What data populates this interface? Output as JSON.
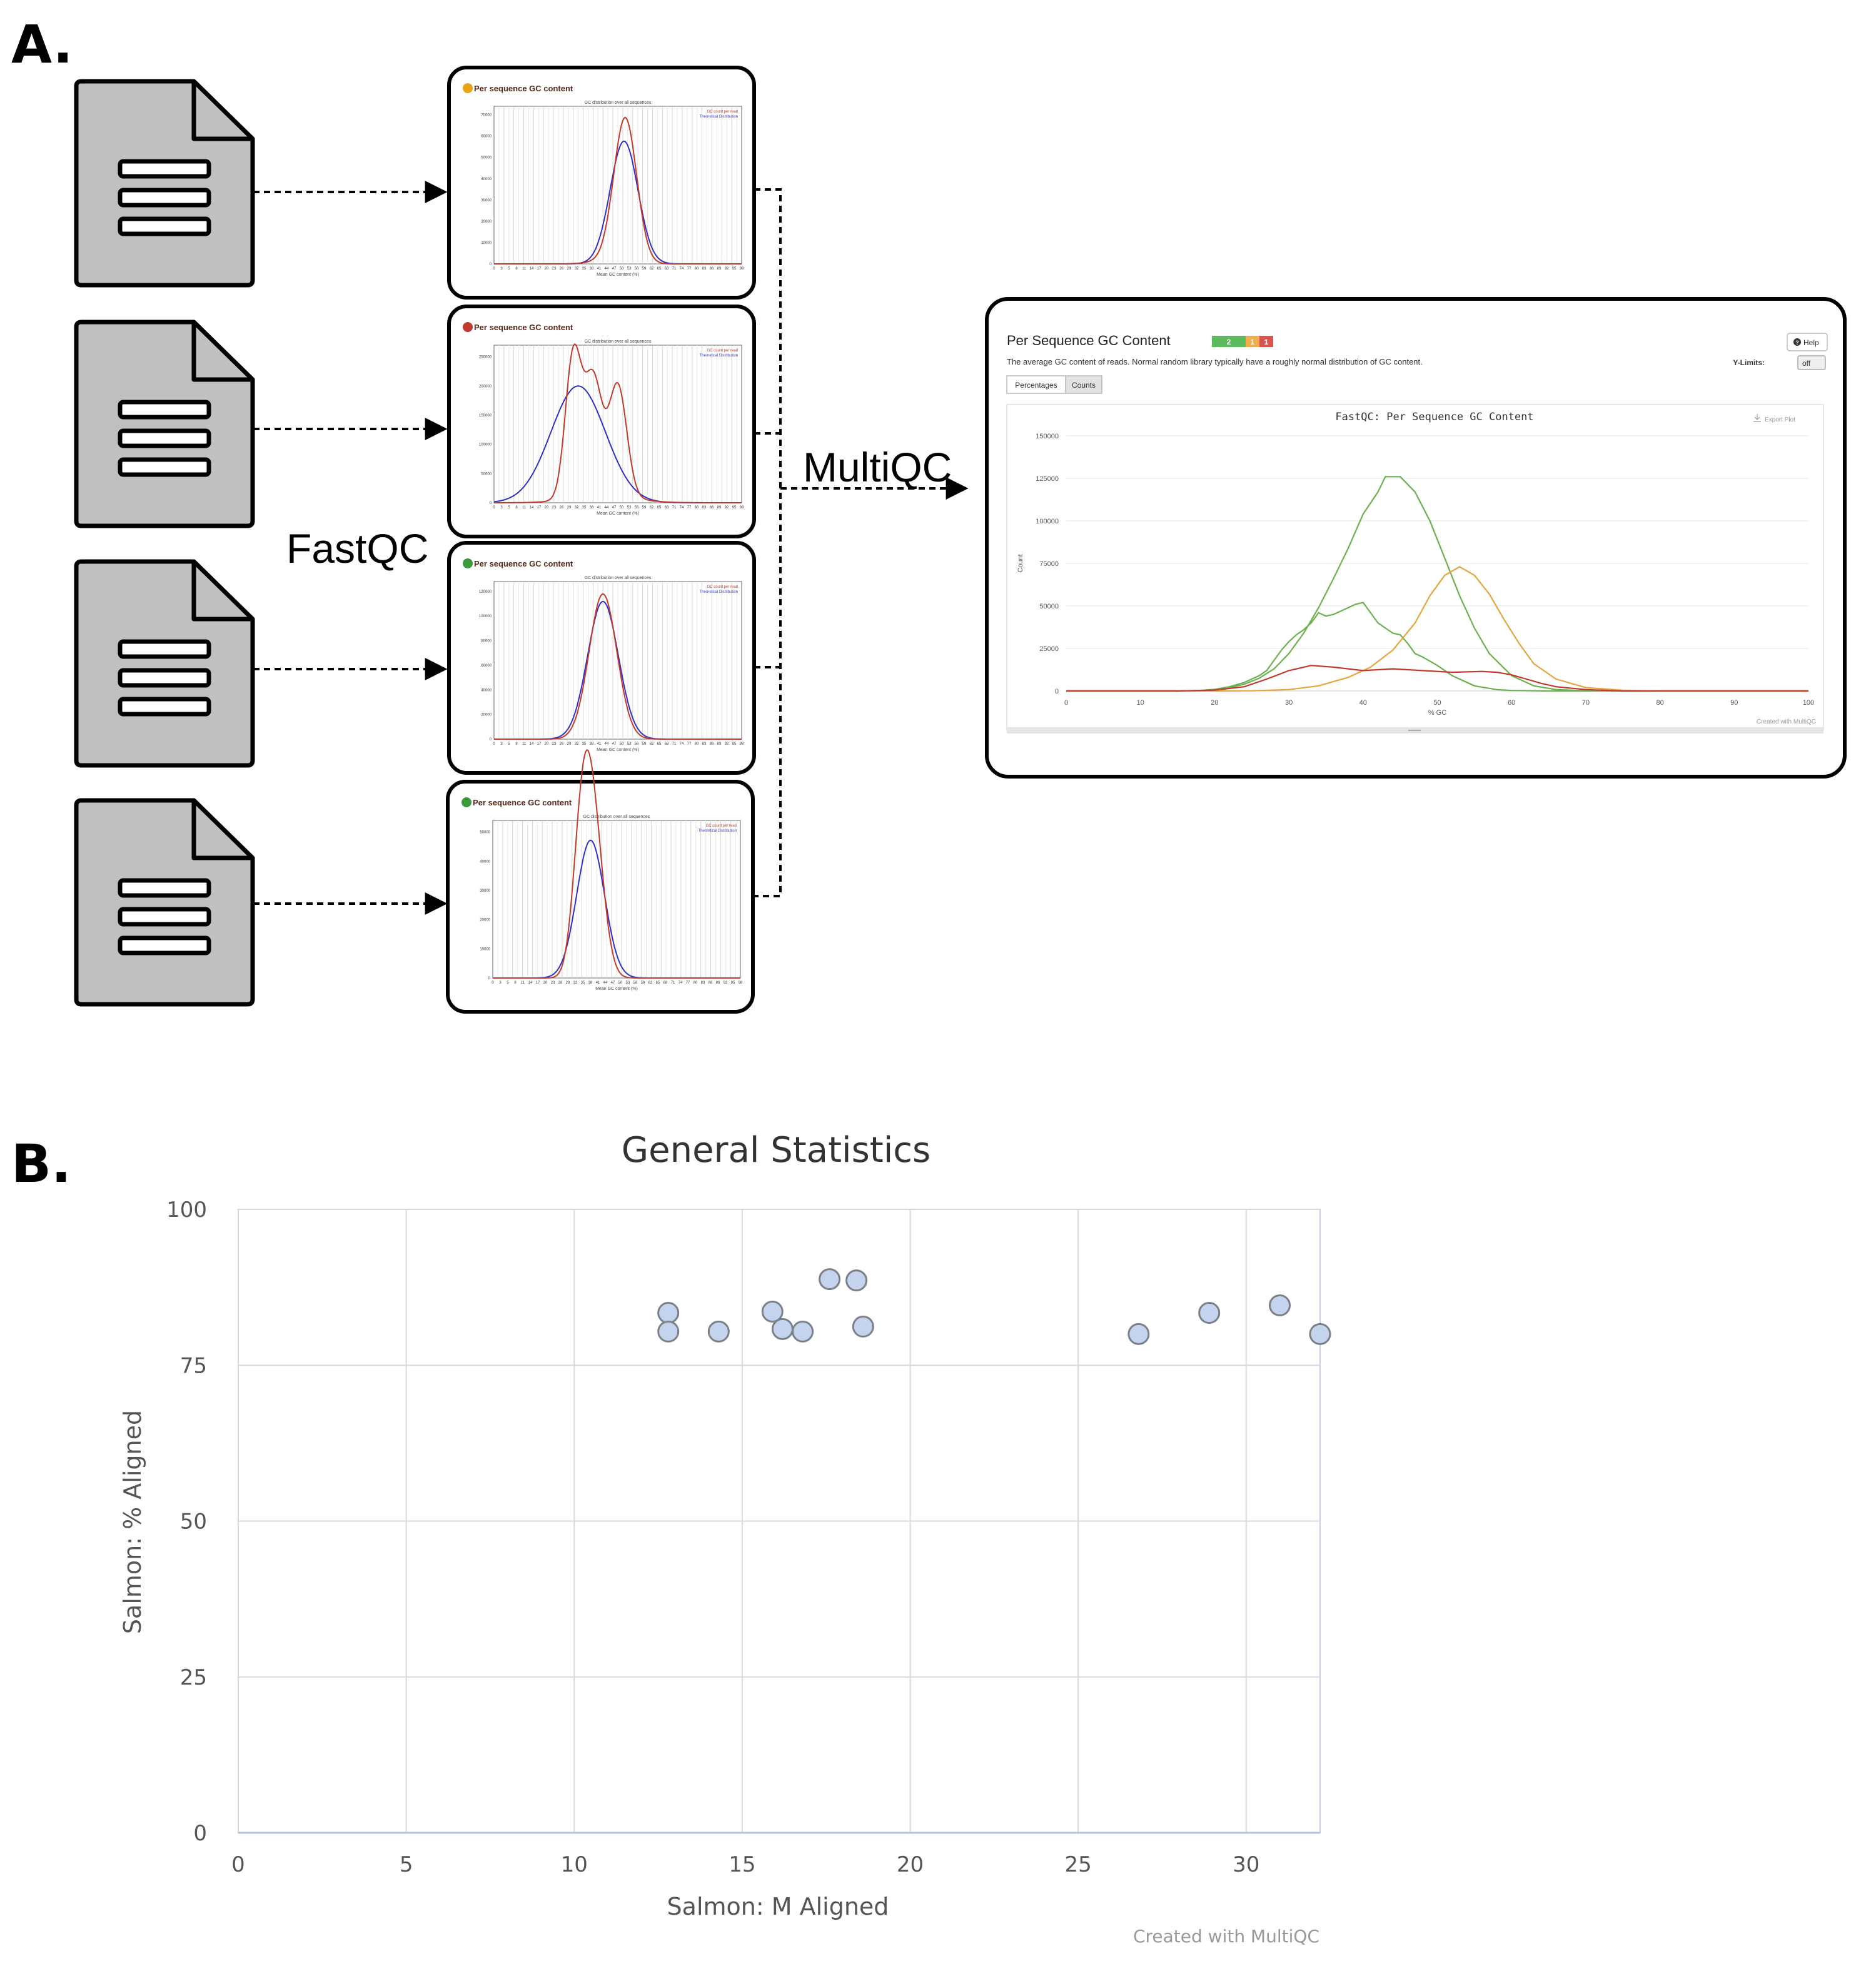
{
  "panel_a": {
    "label": "A.",
    "fastqc_label": "FastQC",
    "multiqc_label": "MultiQC",
    "fastqc_reports": [
      {
        "status": "warn",
        "status_color": "#e8a317",
        "title": "Per sequence GC content",
        "subtitle": "GC distribution over all sequences",
        "xlabel": "Mean GC content (%)",
        "legend": [
          "GC count per read",
          "Theoretical Distribution"
        ],
        "yticks": [
          "0",
          "10000",
          "20000",
          "30000",
          "40000",
          "50000",
          "60000",
          "70000"
        ]
      },
      {
        "status": "fail",
        "status_color": "#c0392b",
        "title": "Per sequence GC content",
        "subtitle": "GC distribution over all sequences",
        "xlabel": "Mean GC content (%)",
        "legend": [
          "GC count per read",
          "Theoretical Distribution"
        ],
        "yticks": [
          "0",
          "50000",
          "100000",
          "150000",
          "200000",
          "250000"
        ]
      },
      {
        "status": "pass",
        "status_color": "#3c9a3c",
        "title": "Per sequence GC content",
        "subtitle": "GC distribution over all sequences",
        "xlabel": "Mean GC content (%)",
        "legend": [
          "GC count per read",
          "Theoretical Distribution"
        ],
        "yticks": [
          "0",
          "20000",
          "40000",
          "60000",
          "80000",
          "100000",
          "120000"
        ]
      },
      {
        "status": "pass",
        "status_color": "#3c9a3c",
        "title": "Per sequence GC content",
        "subtitle": "GC distribution over all sequences",
        "xlabel": "Mean GC content (%)",
        "legend": [
          "GC count per read",
          "Theoretical Distribution"
        ],
        "yticks": [
          "0",
          "10000",
          "20000",
          "30000",
          "40000",
          "50000"
        ]
      }
    ],
    "multiqc_report": {
      "title": "Per Sequence GC Content",
      "badges": [
        {
          "text": "2",
          "color": "#5cb85c"
        },
        {
          "text": "1",
          "color": "#f0ad4e"
        },
        {
          "text": "1",
          "color": "#d9534f"
        }
      ],
      "help_label": "Help",
      "description": "The average GC content of reads. Normal random library typically have a roughly normal distribution of GC content.",
      "ylimits_label": "Y-Limits:",
      "ylimits_value": "off",
      "tabs": [
        "Percentages",
        "Counts"
      ],
      "active_tab": "Counts",
      "export_label": "Export Plot",
      "credit": "Created with MultiQC",
      "chart_data": {
        "type": "line",
        "title": "FastQC: Per Sequence GC Content",
        "xlabel": "% GC",
        "ylabel": "Count",
        "xlim": [
          0,
          100
        ],
        "ylim": [
          0,
          150000
        ],
        "xticks": [
          0,
          10,
          20,
          30,
          40,
          50,
          60,
          70,
          80,
          90,
          100
        ],
        "yticks": [
          0,
          25000,
          50000,
          75000,
          100000,
          125000,
          150000
        ],
        "series": [
          {
            "color": "#6ab04c",
            "x": [
              0,
              10,
              15,
              18,
              20,
              22,
              24,
              26,
              28,
              30,
              32,
              34,
              36,
              38,
              40,
              42,
              43,
              45,
              47,
              49,
              51,
              53,
              55,
              57,
              60,
              63,
              66,
              70,
              75,
              80,
              90,
              100
            ],
            "y": [
              0,
              0,
              0,
              200,
              800,
              2000,
              4000,
              7500,
              13000,
              22000,
              34000,
              49000,
              66000,
              84000,
              104000,
              117000,
              126000,
              126000,
              117000,
              100000,
              78000,
              56000,
              37000,
              22000,
              9000,
              3000,
              800,
              200,
              0,
              0,
              0,
              0
            ]
          },
          {
            "color": "#6ab04c",
            "x": [
              0,
              10,
              15,
              18,
              20,
              22,
              24,
              26,
              27,
              28,
              29,
              30,
              31,
              32,
              33,
              34,
              35,
              36,
              37,
              38,
              39,
              40,
              41,
              42,
              43,
              44,
              45,
              46,
              47,
              48,
              50,
              52,
              55,
              58,
              60,
              65,
              70,
              80,
              100
            ],
            "y": [
              0,
              0,
              0,
              300,
              1000,
              2500,
              5000,
              9000,
              12000,
              18000,
              24000,
              29000,
              33000,
              36000,
              40000,
              46000,
              44000,
              45000,
              47000,
              49000,
              51000,
              52000,
              46000,
              40000,
              37000,
              34000,
              33000,
              28000,
              22000,
              20000,
              15000,
              9000,
              3000,
              800,
              300,
              0,
              0,
              0,
              0
            ]
          },
          {
            "color": "#e8a33d",
            "x": [
              0,
              10,
              20,
              25,
              30,
              34,
              38,
              41,
              44,
              47,
              49,
              51,
              53,
              55,
              57,
              59,
              61,
              63,
              66,
              70,
              75,
              80,
              90,
              100
            ],
            "y": [
              0,
              0,
              0,
              100,
              800,
              3000,
              8000,
              14000,
              24000,
              40000,
              56000,
              68000,
              73000,
              68000,
              57000,
              42000,
              28000,
              16000,
              7000,
              2000,
              400,
              0,
              0,
              0
            ]
          },
          {
            "color": "#c0392b",
            "x": [
              0,
              10,
              15,
              20,
              24,
              27,
              30,
              33,
              36,
              40,
              44,
              48,
              52,
              56,
              58,
              60,
              62,
              64,
              66,
              70,
              75,
              80,
              100
            ],
            "y": [
              0,
              0,
              0,
              500,
              2500,
              7000,
              12000,
              15000,
              14000,
              12000,
              13000,
              12000,
              11000,
              11500,
              11000,
              9500,
              7000,
              4500,
              2500,
              800,
              0,
              0,
              0
            ]
          }
        ]
      }
    }
  },
  "panel_b": {
    "label": "B.",
    "credit": "Created with MultiQC",
    "chart_data": {
      "type": "scatter",
      "title": "General Statistics",
      "xlabel": "Salmon: M Aligned",
      "ylabel": "Salmon: % Aligned",
      "xlim": [
        0,
        32.2
      ],
      "ylim": [
        0,
        100
      ],
      "xticks": [
        0,
        5,
        10,
        15,
        20,
        25,
        30
      ],
      "yticks": [
        0,
        25,
        50,
        75,
        100
      ],
      "grid": true,
      "point_color": "#c5d4ee",
      "point_stroke": "#7a7f88",
      "points": [
        {
          "x": 12.8,
          "y": 83.4
        },
        {
          "x": 12.8,
          "y": 80.4
        },
        {
          "x": 14.3,
          "y": 80.4
        },
        {
          "x": 15.9,
          "y": 83.6
        },
        {
          "x": 16.2,
          "y": 80.8
        },
        {
          "x": 16.8,
          "y": 80.4
        },
        {
          "x": 17.6,
          "y": 88.8
        },
        {
          "x": 18.4,
          "y": 88.6
        },
        {
          "x": 18.6,
          "y": 81.2
        },
        {
          "x": 26.8,
          "y": 80.0
        },
        {
          "x": 28.9,
          "y": 83.4
        },
        {
          "x": 31.0,
          "y": 84.6
        },
        {
          "x": 32.2,
          "y": 80.0
        }
      ]
    }
  }
}
